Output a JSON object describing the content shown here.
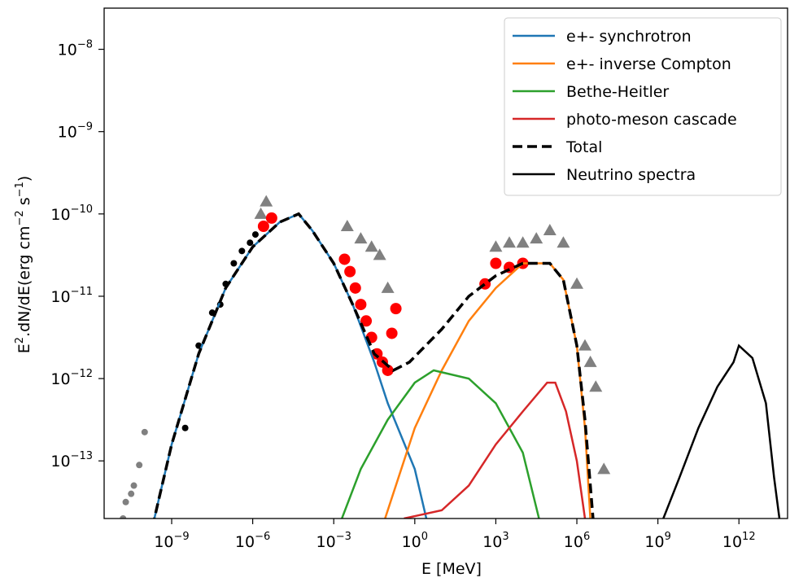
{
  "chart_data": {
    "type": "line",
    "xscale": "log",
    "yscale": "log",
    "xlabel": {
      "main": "E [MeV]"
    },
    "ylabel": {
      "p1": "E",
      "sup1": "2",
      "p2": ".dN/dE(erg cm",
      "sup2": "−2",
      "p3": " s",
      "sup3": "−1",
      "p4": ")"
    },
    "xlim_exp": [
      -11.5,
      13.8
    ],
    "ylim_exp": [
      -13.7,
      -7.5
    ],
    "x_ticks": [
      {
        "base": "10",
        "exp": "−9",
        "value_exp": -9
      },
      {
        "base": "10",
        "exp": "−6",
        "value_exp": -6
      },
      {
        "base": "10",
        "exp": "−3",
        "value_exp": -3
      },
      {
        "base": "10",
        "exp": "0",
        "value_exp": 0
      },
      {
        "base": "10",
        "exp": "3",
        "value_exp": 3
      },
      {
        "base": "10",
        "exp": "6",
        "value_exp": 6
      },
      {
        "base": "10",
        "exp": "9",
        "value_exp": 9
      },
      {
        "base": "10",
        "exp": "12",
        "value_exp": 12
      }
    ],
    "y_ticks": [
      {
        "base": "10",
        "exp": "−8",
        "value_exp": -8
      },
      {
        "base": "10",
        "exp": "−9",
        "value_exp": -9
      },
      {
        "base": "10",
        "exp": "−10",
        "value_exp": -10
      },
      {
        "base": "10",
        "exp": "−11",
        "value_exp": -11
      },
      {
        "base": "10",
        "exp": "−12",
        "value_exp": -12
      },
      {
        "base": "10",
        "exp": "−13",
        "value_exp": -13
      }
    ],
    "legend_position": "top-right",
    "series": [
      {
        "name": "e+- synchrotron",
        "color": "#1f77b4",
        "dash": "solid",
        "points_log": [
          [
            -10.2,
            -14.5
          ],
          [
            -9.5,
            -13.5
          ],
          [
            -9,
            -12.8
          ],
          [
            -8,
            -11.7
          ],
          [
            -7,
            -10.9
          ],
          [
            -6,
            -10.4
          ],
          [
            -5,
            -10.1
          ],
          [
            -4.3,
            -10.0
          ],
          [
            -3.8,
            -10.2
          ],
          [
            -3,
            -10.6
          ],
          [
            -2.3,
            -11.1
          ],
          [
            -1.5,
            -11.8
          ],
          [
            -1,
            -12.3
          ],
          [
            0,
            -13.1
          ],
          [
            0.5,
            -13.8
          ]
        ]
      },
      {
        "name": "e+- inverse Compton",
        "color": "#ff7f0e",
        "dash": "solid",
        "points_log": [
          [
            -1.1,
            -13.7
          ],
          [
            -0.5,
            -13.1
          ],
          [
            0,
            -12.6
          ],
          [
            1,
            -11.9
          ],
          [
            2,
            -11.3
          ],
          [
            3,
            -10.9
          ],
          [
            4,
            -10.6
          ],
          [
            5,
            -10.6
          ],
          [
            5.5,
            -10.8
          ],
          [
            6,
            -11.6
          ],
          [
            6.3,
            -12.6
          ],
          [
            6.5,
            -13.7
          ]
        ]
      },
      {
        "name": "Bethe-Heitler",
        "color": "#2ca02c",
        "dash": "solid",
        "points_log": [
          [
            -2.7,
            -13.7
          ],
          [
            -2,
            -13.1
          ],
          [
            -1,
            -12.5
          ],
          [
            0,
            -12.05
          ],
          [
            0.7,
            -11.9
          ],
          [
            2,
            -12.0
          ],
          [
            3,
            -12.3
          ],
          [
            4,
            -12.9
          ],
          [
            4.6,
            -13.7
          ]
        ]
      },
      {
        "name": "photo-meson cascade",
        "color": "#d62728",
        "dash": "solid",
        "points_log": [
          [
            -0.4,
            -13.7
          ],
          [
            1,
            -13.6
          ],
          [
            2,
            -13.3
          ],
          [
            3,
            -12.8
          ],
          [
            4,
            -12.4
          ],
          [
            4.9,
            -12.05
          ],
          [
            5.2,
            -12.05
          ],
          [
            5.6,
            -12.4
          ],
          [
            6,
            -13.0
          ],
          [
            6.3,
            -13.7
          ]
        ]
      },
      {
        "name": "Total",
        "color": "#000000",
        "dash": "dashed",
        "points_log": [
          [
            -10.2,
            -14.5
          ],
          [
            -9.5,
            -13.5
          ],
          [
            -9,
            -12.8
          ],
          [
            -8,
            -11.7
          ],
          [
            -7,
            -10.9
          ],
          [
            -6,
            -10.4
          ],
          [
            -5,
            -10.1
          ],
          [
            -4.3,
            -10.0
          ],
          [
            -3.8,
            -10.2
          ],
          [
            -3,
            -10.6
          ],
          [
            -2.3,
            -11.1
          ],
          [
            -1.5,
            -11.7
          ],
          [
            -0.8,
            -11.9
          ],
          [
            -0.2,
            -11.8
          ],
          [
            1,
            -11.4
          ],
          [
            2,
            -11.0
          ],
          [
            3,
            -10.75
          ],
          [
            4,
            -10.6
          ],
          [
            5,
            -10.6
          ],
          [
            5.5,
            -10.8
          ],
          [
            6,
            -11.6
          ],
          [
            6.3,
            -12.5
          ],
          [
            6.6,
            -13.7
          ]
        ]
      },
      {
        "name": "Neutrino spectra",
        "color": "#000000",
        "dash": "solid",
        "points_log": [
          [
            9.2,
            -13.7
          ],
          [
            9.8,
            -13.2
          ],
          [
            10.5,
            -12.6
          ],
          [
            11.2,
            -12.1
          ],
          [
            11.8,
            -11.8
          ],
          [
            12,
            -11.6
          ],
          [
            12.5,
            -11.75
          ],
          [
            13,
            -12.3
          ],
          [
            13.3,
            -13.2
          ],
          [
            13.5,
            -13.7
          ]
        ]
      }
    ],
    "observations": {
      "black_points": [
        [
          -8.5,
          -12.6
        ],
        [
          -8,
          -11.6
        ],
        [
          -7.5,
          -11.2
        ],
        [
          -7.2,
          -11.1
        ],
        [
          -7,
          -10.85
        ],
        [
          -6.7,
          -10.6
        ],
        [
          -6.4,
          -10.45
        ],
        [
          -6.1,
          -10.35
        ],
        [
          -5.9,
          -10.25
        ]
      ],
      "grey_points": [
        [
          -10.8,
          -13.7
        ],
        [
          -10.7,
          -13.5
        ],
        [
          -10.5,
          -13.4
        ],
        [
          -10.4,
          -13.3
        ],
        [
          -10.2,
          -13.05
        ],
        [
          -10,
          -12.65
        ]
      ],
      "grey_triangles": [
        [
          -5.7,
          -10.0
        ],
        [
          -5.5,
          -9.85
        ],
        [
          -2.5,
          -10.15
        ],
        [
          -2,
          -10.3
        ],
        [
          -1.6,
          -10.4
        ],
        [
          -1.3,
          -10.5
        ],
        [
          -1,
          -10.9
        ],
        [
          3,
          -10.4
        ],
        [
          3.5,
          -10.35
        ],
        [
          4,
          -10.35
        ],
        [
          4.5,
          -10.3
        ],
        [
          5,
          -10.2
        ],
        [
          5.5,
          -10.35
        ],
        [
          6,
          -10.85
        ],
        [
          6.3,
          -11.6
        ],
        [
          6.5,
          -11.8
        ],
        [
          6.7,
          -12.1
        ],
        [
          7,
          -13.1
        ]
      ],
      "red_points": [
        [
          -5.6,
          -10.15
        ],
        [
          -5.3,
          -10.05
        ],
        [
          -2.6,
          -10.55
        ],
        [
          -2.4,
          -10.7
        ],
        [
          -2.2,
          -10.9
        ],
        [
          -2,
          -11.1
        ],
        [
          -1.8,
          -11.3
        ],
        [
          -1.6,
          -11.5
        ],
        [
          -1.4,
          -11.7
        ],
        [
          -1.2,
          -11.8
        ],
        [
          -1,
          -11.9
        ],
        [
          -0.85,
          -11.45
        ],
        [
          -0.7,
          -11.15
        ],
        [
          2.6,
          -10.85
        ],
        [
          3,
          -10.6
        ],
        [
          3.5,
          -10.65
        ],
        [
          4,
          -10.6
        ]
      ]
    },
    "legend": {
      "items": [
        {
          "label": "e+- synchrotron",
          "color": "#1f77b4",
          "dash": "solid"
        },
        {
          "label": "e+- inverse Compton",
          "color": "#ff7f0e",
          "dash": "solid"
        },
        {
          "label": "Bethe-Heitler",
          "color": "#2ca02c",
          "dash": "solid"
        },
        {
          "label": "photo-meson cascade",
          "color": "#d62728",
          "dash": "solid"
        },
        {
          "label": "Total",
          "color": "#000000",
          "dash": "dashed"
        },
        {
          "label": "Neutrino spectra",
          "color": "#000000",
          "dash": "solid"
        }
      ]
    }
  }
}
